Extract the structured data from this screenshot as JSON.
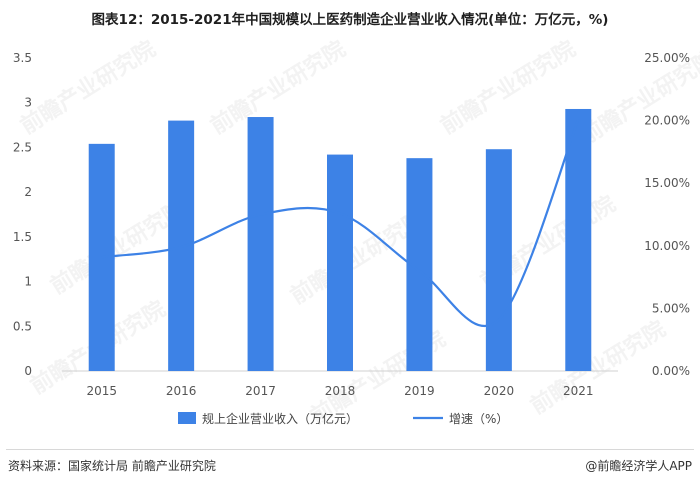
{
  "title": "图表12：2015-2021年中国规模以上医药制造企业营业收入情况(单位：万亿元，%)",
  "chart_data": {
    "type": "bar+line",
    "categories": [
      "2015",
      "2016",
      "2017",
      "2018",
      "2019",
      "2020",
      "2021"
    ],
    "series": [
      {
        "name": "规上企业营业收入（万亿元）",
        "type": "bar",
        "axis": "left",
        "values": [
          2.54,
          2.8,
          2.84,
          2.42,
          2.38,
          2.48,
          2.93
        ]
      },
      {
        "name": "增速（%）",
        "type": "line",
        "axis": "right",
        "smooth": true,
        "values": [
          9.1,
          9.9,
          12.5,
          12.6,
          8.0,
          4.1,
          20.1
        ]
      }
    ],
    "y_left": {
      "min": 0,
      "max": 3.5,
      "ticks": [
        "0",
        "0.5",
        "1",
        "1.5",
        "2",
        "2.5",
        "3",
        "3.5"
      ]
    },
    "y_right": {
      "min": 0,
      "max": 25,
      "ticks": [
        "0.00%",
        "5.00%",
        "10.00%",
        "15.00%",
        "20.00%",
        "25.00%"
      ]
    },
    "colors": {
      "bar": "#3d82e6",
      "line": "#3d82e6"
    },
    "legend_position": "bottom-center"
  },
  "watermark": "前瞻产业研究院",
  "footer": {
    "source": "资料来源：国家统计局 前瞻产业研究院",
    "brand": "@前瞻经济学人APP"
  }
}
